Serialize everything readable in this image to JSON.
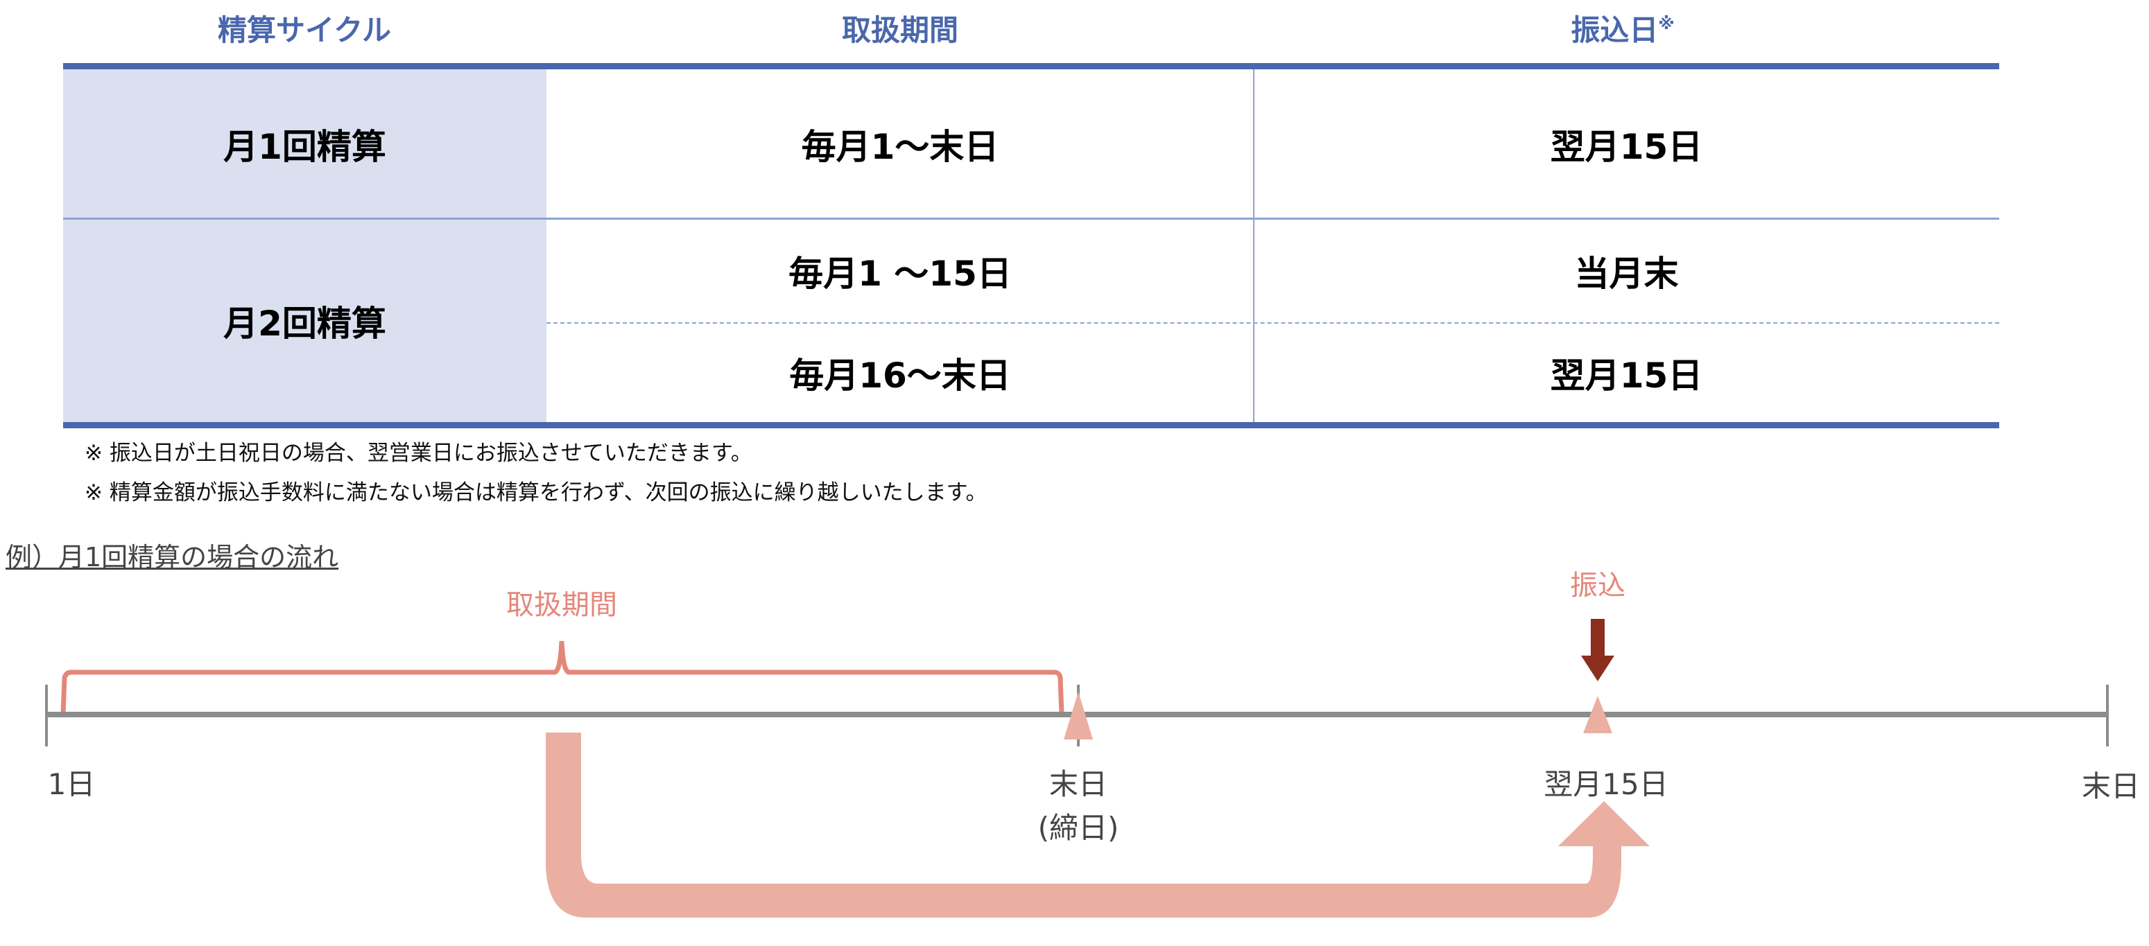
{
  "table": {
    "headers": [
      "精算サイクル",
      "取扱期間",
      "振込日"
    ],
    "header_note_mark": "※",
    "rows": [
      {
        "cycle": "月1回精算",
        "periods": [
          {
            "period": "毎月1〜末日",
            "transfer": "翌月15日"
          }
        ]
      },
      {
        "cycle": "月2回精算",
        "periods": [
          {
            "period": "毎月1 〜15日",
            "transfer": "当月末"
          },
          {
            "period": "毎月16〜末日",
            "transfer": "翌月15日"
          }
        ]
      }
    ]
  },
  "notes": [
    "※ 振込日が土日祝日の場合、翌営業日にお振込させていただきます。",
    "※ 精算金額が振込手数料に満たない場合は精算を行わず、次回の振込に繰り越しいたします。"
  ],
  "example": {
    "title": "例）月1回精算の場合の流れ",
    "period_label": "取扱期間",
    "transfer_label": "振込",
    "timeline_labels": [
      "1日",
      "末日",
      "(締日)",
      "翌月15日",
      "末日"
    ]
  },
  "colors": {
    "header_blue": "#4a67ad",
    "cell_fill": "#dbe0f0",
    "salmon": "#e4877a",
    "light_salmon": "#ebafa2",
    "dark_red": "#8b2e1e",
    "axis_gray": "#8c8c8c"
  }
}
